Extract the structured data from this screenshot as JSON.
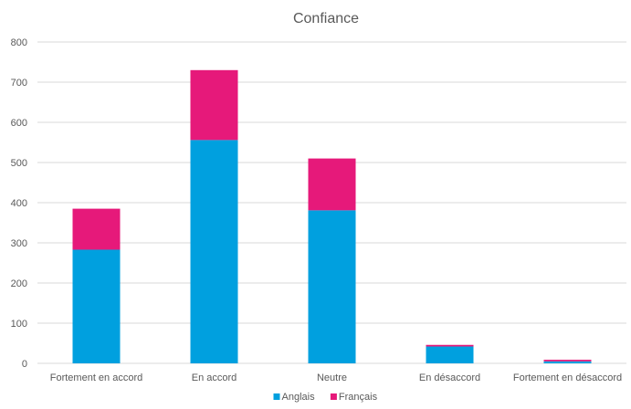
{
  "chart_data": {
    "type": "bar",
    "stacked": true,
    "title": "Confiance",
    "xlabel": "",
    "ylabel": "",
    "categories": [
      "Fortement en accord",
      "En accord",
      "Neutre",
      "En désaccord",
      "Fortement en désaccord"
    ],
    "series": [
      {
        "name": "Anglais",
        "color": "#00A0DF",
        "values": [
          283,
          556,
          381,
          42,
          5
        ]
      },
      {
        "name": "Français",
        "color": "#E6197A",
        "values": [
          102,
          174,
          129,
          4,
          4
        ]
      }
    ],
    "ylim": [
      0,
      800
    ],
    "yticks": [
      0,
      100,
      200,
      300,
      400,
      500,
      600,
      700,
      800
    ],
    "grid": true,
    "legend": "bottom"
  }
}
